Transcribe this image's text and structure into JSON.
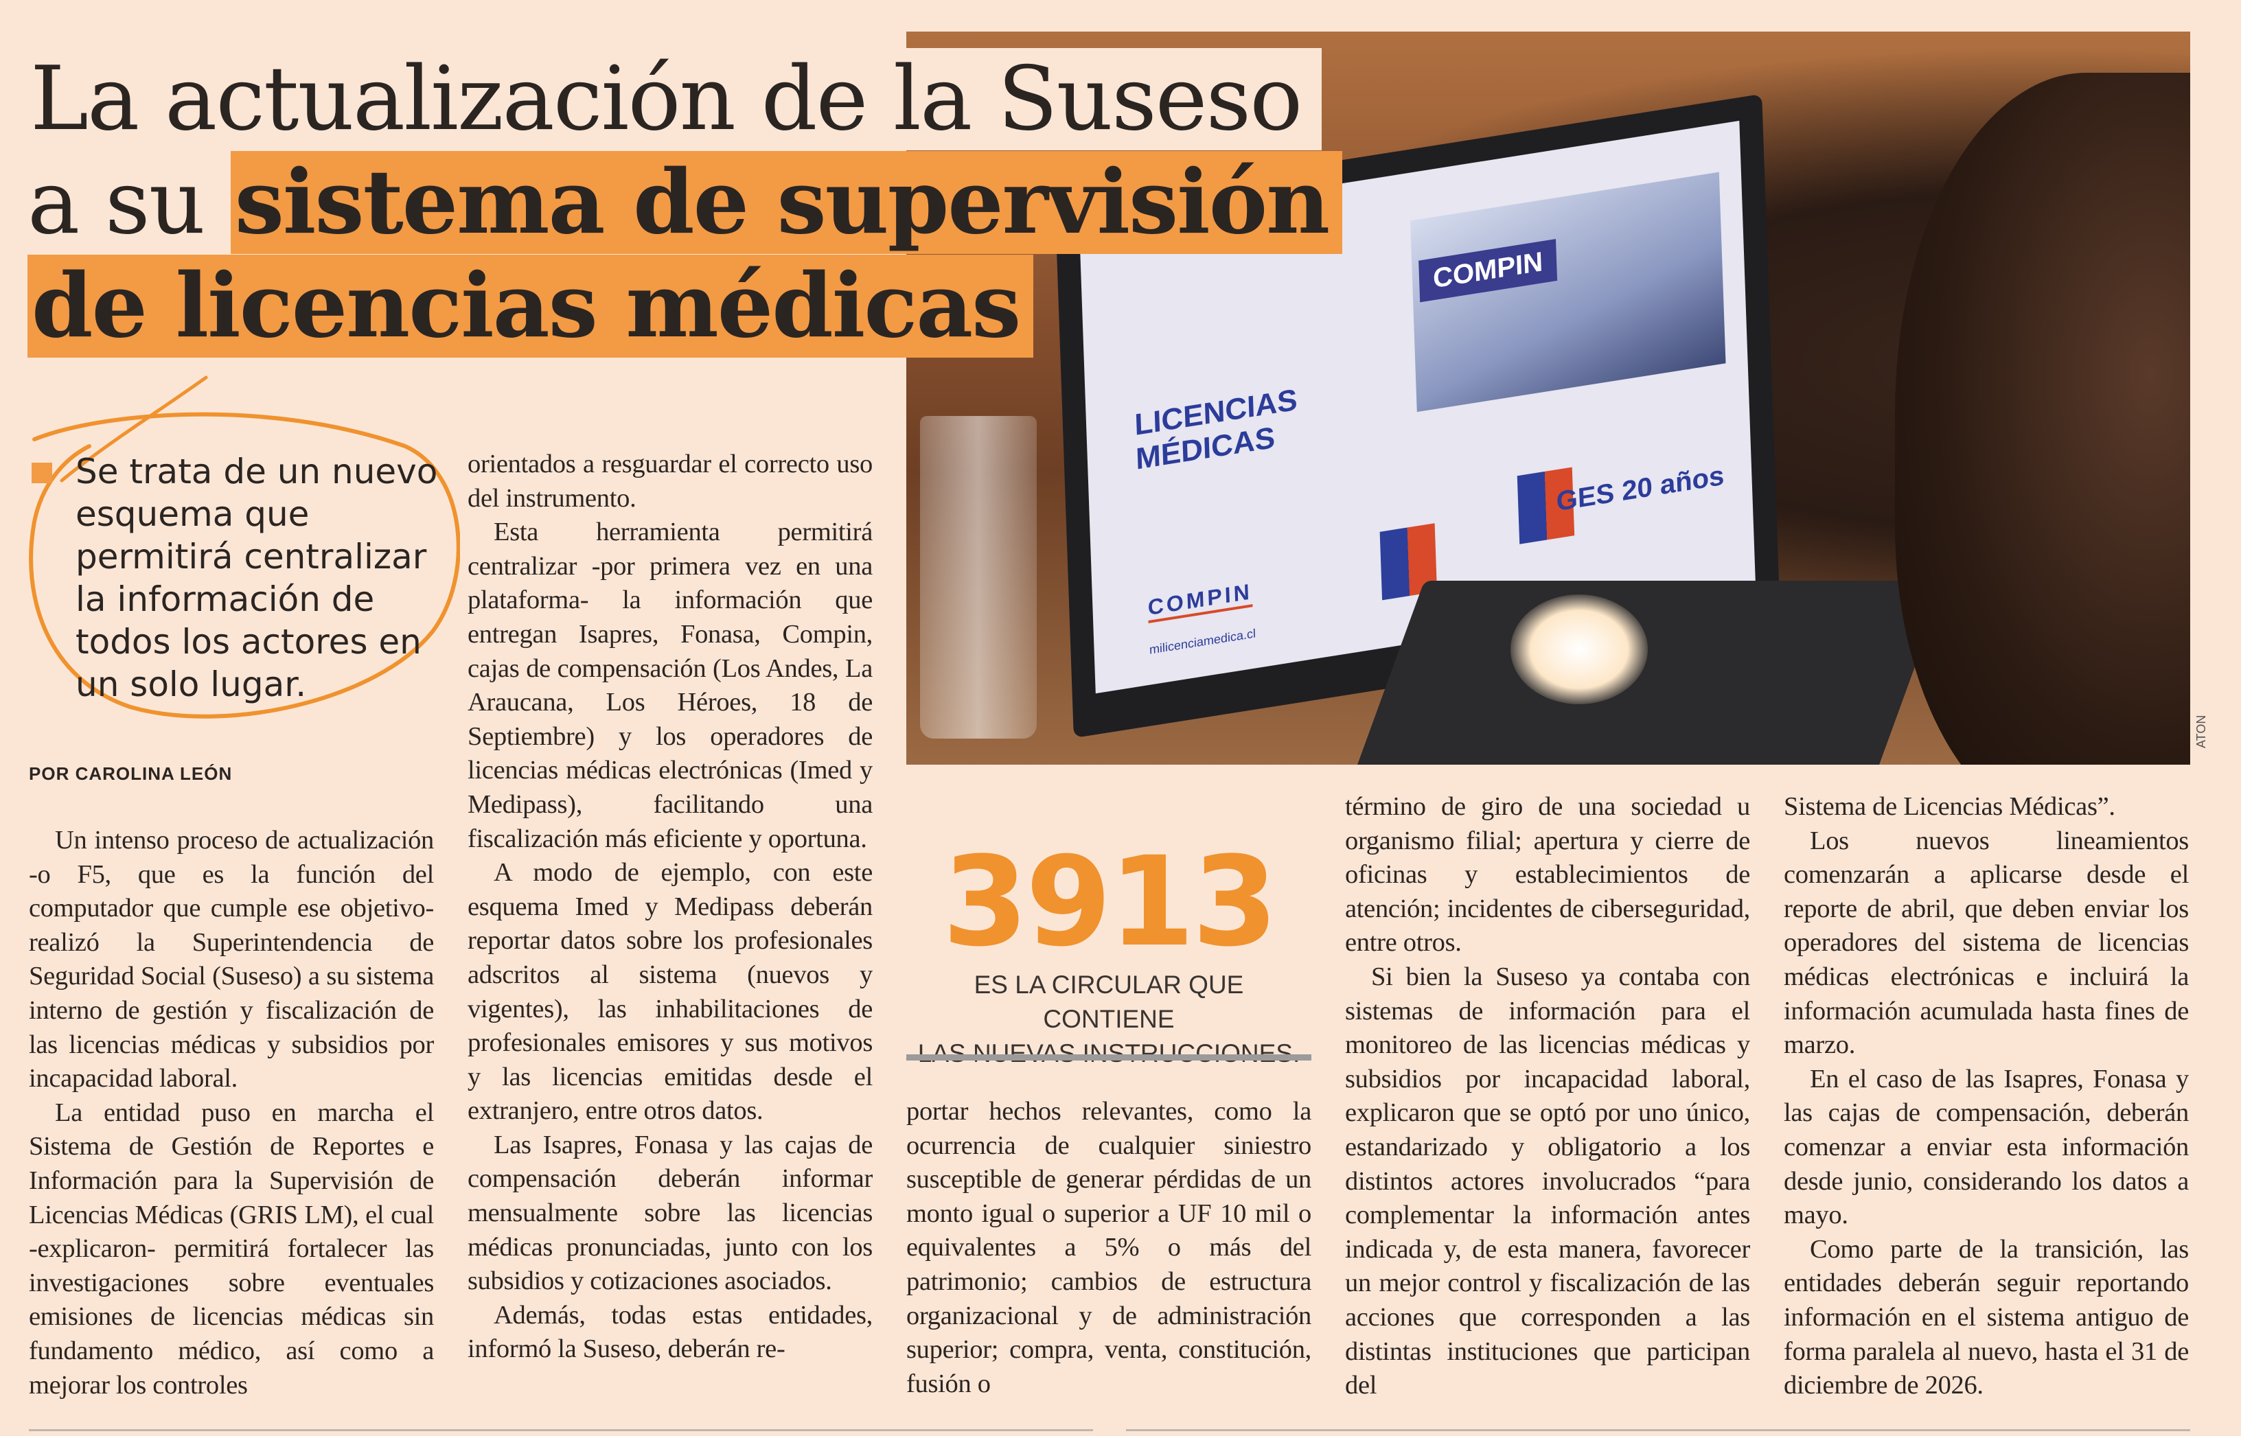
{
  "headline": {
    "line1": "La actualización de la Suseso",
    "line2_plain": "a su ",
    "line2_highlight": "sistema de supervisión",
    "line3_highlight": "de licencias médicas"
  },
  "accent_color": "#f39a45",
  "stat_color": "#f0922e",
  "pull_quote": "Se trata de un nuevo esquema que permitirá centralizar la información de todos los actores en un solo lugar.",
  "byline": "POR CAROLINA LEÓN",
  "photo": {
    "screen_title_1": "LICENCIAS",
    "screen_title_2": "MÉDICAS",
    "screen_badge": "COMPIN",
    "screen_logo": "COMPIN",
    "screen_url": "milicenciamedica.cl",
    "screen_ges": "GES 20 años",
    "credit": "ATON"
  },
  "stat": {
    "number": "3913",
    "caption_1": "ES LA CIRCULAR QUE CONTIENE",
    "caption_2": "LAS NUEVAS INSTRUCCIONES."
  },
  "columns": [
    [
      {
        "text": "Un intenso proceso de actualización -o F5, que es la función del computador que cumple ese objetivo- realizó la Superintendencia de Seguridad Social (Suseso) a su sistema interno de gestión y fiscalización de las licencias médicas y subsidios por incapacidad laboral."
      },
      {
        "text": "La entidad puso en marcha el Sistema de Gestión de Reportes e Información para la Supervisión de Licencias Médicas (GRIS LM), el cual -explicaron- permitirá fortalecer las investigaciones sobre eventuales emisiones de licencias médicas sin fundamento médico, así como a mejorar los controles"
      }
    ],
    [
      {
        "text": "orientados a resguardar el correcto uso del instrumento.",
        "cont": true
      },
      {
        "text": "Esta herramienta permitirá centralizar -por primera vez en una plataforma- la información que entregan Isapres, Fonasa, Compin, cajas de compensación (Los Andes, La Araucana, Los Héroes, 18 de Septiembre) y los operadores de licencias médicas electrónicas (Imed y Medipass), facilitando una fiscalización más eficiente y oportuna."
      },
      {
        "text": "A modo de ejemplo, con este esquema Imed y Medipass deberán reportar datos sobre los profesionales adscritos al sistema (nuevos y vigentes), las inhabilitaciones de profesionales emisores y sus motivos y las licencias emitidas desde el extranjero, entre otros datos."
      },
      {
        "text": "Las Isapres, Fonasa y las cajas de compensación deberán informar mensualmente sobre las licencias médicas pronunciadas, junto con los subsidios y cotizaciones asociados."
      },
      {
        "text": "Además, todas estas entidades, informó la Suseso, deberán re-"
      }
    ],
    [
      {
        "text": "portar hechos relevantes, como la ocurrencia de cualquier siniestro susceptible de generar pérdidas de un monto igual o superior a UF 10 mil o equivalentes a 5% o más del patrimonio; cambios de estructura organizacional y de administración superior; compra, venta, constitución, fusión o",
        "cont": true
      }
    ],
    [
      {
        "text": "término de giro de una sociedad u organismo filial; apertura y cierre de oficinas y establecimientos de atención; incidentes de ciberseguridad, entre otros.",
        "cont": true
      },
      {
        "text": "Si bien la Suseso ya contaba con sistemas de información para el monitoreo de las licencias médicas y subsidios por incapacidad laboral, explicaron que se optó por uno único, estandarizado y obligatorio a los distintos actores involucrados “para complementar la información antes indicada y, de esta manera, favorecer un mejor control y fiscalización de las acciones que corresponden a las distintas instituciones que participan del"
      }
    ],
    [
      {
        "text": "Sistema de Licencias Médicas”.",
        "cont": true
      },
      {
        "text": "Los nuevos lineamientos comenzarán a aplicarse desde el reporte de abril, que deben enviar los operadores del sistema de licencias médicas electrónicas e incluirá la información acumulada hasta fines de marzo."
      },
      {
        "text": "En el caso de las Isapres, Fonasa y las cajas de compensación, deberán comenzar a enviar esta información desde junio, considerando los datos a mayo."
      },
      {
        "text": "Como parte de la transición, las entidades deberán seguir reportando información en el sistema antiguo de forma paralela al nuevo, hasta el 31 de diciembre de 2026."
      }
    ]
  ]
}
